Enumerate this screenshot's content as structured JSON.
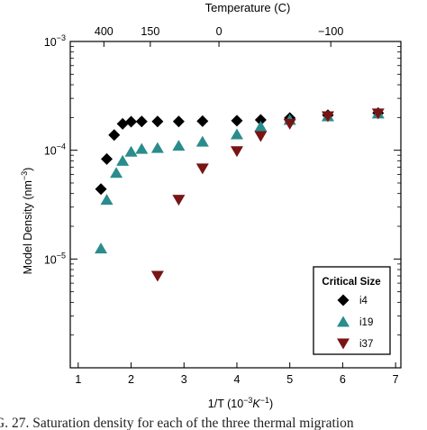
{
  "chart_data": {
    "type": "scatter",
    "top_axis_title": "Temperature (C)",
    "top_ticks": [
      "400",
      "150",
      "0",
      "−100"
    ],
    "top_tick_values_C": [
      400,
      150,
      0,
      -100
    ],
    "ylabel_parts": [
      "Model Density (nm",
      "−3",
      ")"
    ],
    "xlabel_parts": [
      "1/T (10",
      "−3",
      "K",
      "−1",
      ")"
    ],
    "x_ticks": [
      1,
      2,
      3,
      4,
      5,
      6,
      7
    ],
    "y_ticks": [
      {
        "base": "10",
        "exp": "−5",
        "value": 1e-05
      },
      {
        "base": "10",
        "exp": "−4",
        "value": 0.0001
      },
      {
        "base": "10",
        "exp": "−3",
        "value": 0.001
      }
    ],
    "xlim": [
      0.85,
      7.1
    ],
    "ylim": [
      1e-06,
      0.001
    ],
    "yscale": "log",
    "legend": {
      "title": "Critical Size",
      "position": "lower-right"
    },
    "series": [
      {
        "name": "i4",
        "marker": "diamond",
        "color": "#000000",
        "x": [
          1.43,
          1.54,
          1.68,
          1.84,
          2.0,
          2.2,
          2.5,
          2.9,
          3.35,
          4.0,
          4.45,
          5.0,
          5.72,
          6.67
        ],
        "y": [
          4.4e-05,
          8.3e-05,
          0.000138,
          0.000175,
          0.000183,
          0.000184,
          0.000184,
          0.000184,
          0.000185,
          0.000187,
          0.00019,
          0.000198,
          0.00021,
          0.00022
        ]
      },
      {
        "name": "i19",
        "marker": "triangle-up",
        "color": "#2a8c8c",
        "x": [
          1.43,
          1.54,
          1.72,
          1.84,
          2.0,
          2.2,
          2.5,
          2.9,
          3.35,
          4.0,
          4.45,
          5.0,
          5.72,
          6.67
        ],
        "y": [
          1.25e-05,
          3.5e-05,
          6.2e-05,
          8e-05,
          9.7e-05,
          0.000103,
          0.000105,
          0.00011,
          0.00012,
          0.00014,
          0.000165,
          0.00019,
          0.000205,
          0.000218
        ]
      },
      {
        "name": "i37",
        "marker": "triangle-down",
        "color": "#7a1414",
        "x": [
          2.5,
          2.9,
          3.35,
          4.0,
          4.45,
          5.0,
          5.72,
          6.67
        ],
        "y": [
          7e-06,
          3.5e-05,
          6.8e-05,
          9.8e-05,
          0.000135,
          0.000175,
          0.000205,
          0.000218
        ]
      }
    ]
  },
  "caption": "G. 27. Saturation density for each of the three thermal migration"
}
